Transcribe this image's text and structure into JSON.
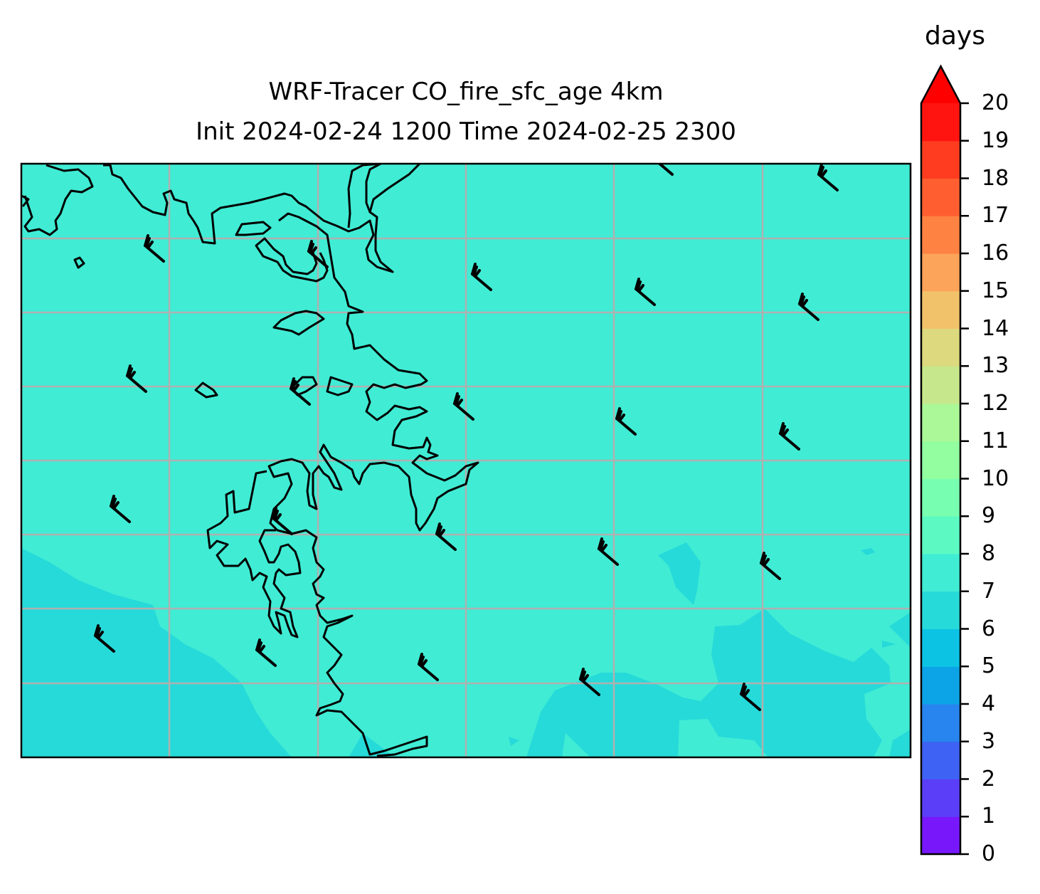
{
  "chart_data": {
    "type": "heatmap",
    "subtype": "filled-contour map with wind barbs",
    "title": [
      "WRF-Tracer CO_fire_sfc_age 4km",
      "Init 2024-02-24 1200 Time 2024-02-25 2300"
    ],
    "colorbar": {
      "label": "days",
      "ticks": [
        "0",
        "1",
        "2",
        "3",
        "4",
        "5",
        "6",
        "7",
        "8",
        "9",
        "10",
        "11",
        "12",
        "13",
        "14",
        "15",
        "16",
        "17",
        "18",
        "19",
        "20"
      ],
      "range": [
        0,
        20
      ],
      "extend": "max",
      "colors": [
        "#7818fa",
        "#5a3ef8",
        "#3e62f4",
        "#2884ee",
        "#0ca4e6",
        "#0cc3e4",
        "#26dad9",
        "#40ecd4",
        "#5cf9c3",
        "#78feb0",
        "#92fea0",
        "#aaf898",
        "#c6e78b",
        "#dcd97e",
        "#f2c26a",
        "#fba45a",
        "#fe8242",
        "#ff5f30",
        "#ff3c20",
        "#ff1410"
      ],
      "extend_color": "#ff0000"
    },
    "field_summary": {
      "dominant_range_days": [
        7,
        8
      ],
      "secondary_range_days": [
        6,
        7
      ]
    },
    "grid": true
  }
}
